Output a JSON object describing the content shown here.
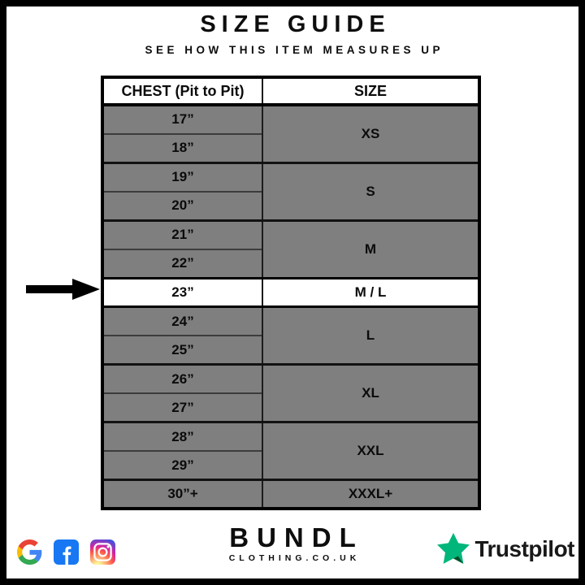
{
  "header": {
    "title": "SIZE GUIDE",
    "subtitle": "SEE HOW THIS ITEM MEASURES UP"
  },
  "table": {
    "headers": [
      "CHEST (Pit to Pit)",
      "SIZE"
    ],
    "groups": [
      {
        "measurements": [
          "17”",
          "18”"
        ],
        "size": "XS",
        "highlight": false
      },
      {
        "measurements": [
          "19”",
          "20”"
        ],
        "size": "S",
        "highlight": false
      },
      {
        "measurements": [
          "21”",
          "22”"
        ],
        "size": "M",
        "highlight": false
      },
      {
        "measurements": [
          "23”"
        ],
        "size": "M / L",
        "highlight": true
      },
      {
        "measurements": [
          "24”",
          "25”"
        ],
        "size": "L",
        "highlight": false
      },
      {
        "measurements": [
          "26”",
          "27”"
        ],
        "size": "XL",
        "highlight": false
      },
      {
        "measurements": [
          "28”",
          "29”"
        ],
        "size": "XXL",
        "highlight": false
      },
      {
        "measurements": [
          "30”+"
        ],
        "size": "XXXL+",
        "highlight": false
      }
    ],
    "highlighted_row": {
      "measurement": "23”",
      "size": "M / L"
    }
  },
  "chart_data": {
    "type": "table",
    "title": "SIZE GUIDE",
    "subtitle": "SEE HOW THIS ITEM MEASURES UP",
    "columns": [
      "CHEST (Pit to Pit)",
      "SIZE"
    ],
    "rows": [
      [
        "17”",
        "XS"
      ],
      [
        "18”",
        "XS"
      ],
      [
        "19”",
        "S"
      ],
      [
        "20”",
        "S"
      ],
      [
        "21”",
        "M"
      ],
      [
        "22”",
        "M"
      ],
      [
        "23”",
        "M / L"
      ],
      [
        "24”",
        "L"
      ],
      [
        "25”",
        "L"
      ],
      [
        "26”",
        "XL"
      ],
      [
        "27”",
        "XL"
      ],
      [
        "28”",
        "XXL"
      ],
      [
        "29”",
        "XXL"
      ],
      [
        "30”+",
        "XXXL+"
      ]
    ],
    "highlighted_row_index": 6,
    "layout": "merged size cells span paired measurement rows; highlighted row marked by left-pointing black arrow"
  },
  "footer": {
    "brand_name": "BUNDL",
    "brand_subtext": "CLOTHING.CO.UK",
    "trustpilot_label": "Trustpilot",
    "social_icons": [
      "google-icon",
      "facebook-icon",
      "instagram-icon"
    ]
  },
  "colors": {
    "row_gray": "#7f7f7f",
    "highlight_row": "#ffffff",
    "border_black": "#000000",
    "trustpilot_green": "#00B67A",
    "trustpilot_shadow_green": "#005128",
    "trustpilot_text": "#191919",
    "facebook_blue": "#1877F2",
    "google_red": "#EA4335",
    "google_blue": "#4285F4",
    "google_yellow": "#FBBC05",
    "google_green": "#34A853"
  }
}
